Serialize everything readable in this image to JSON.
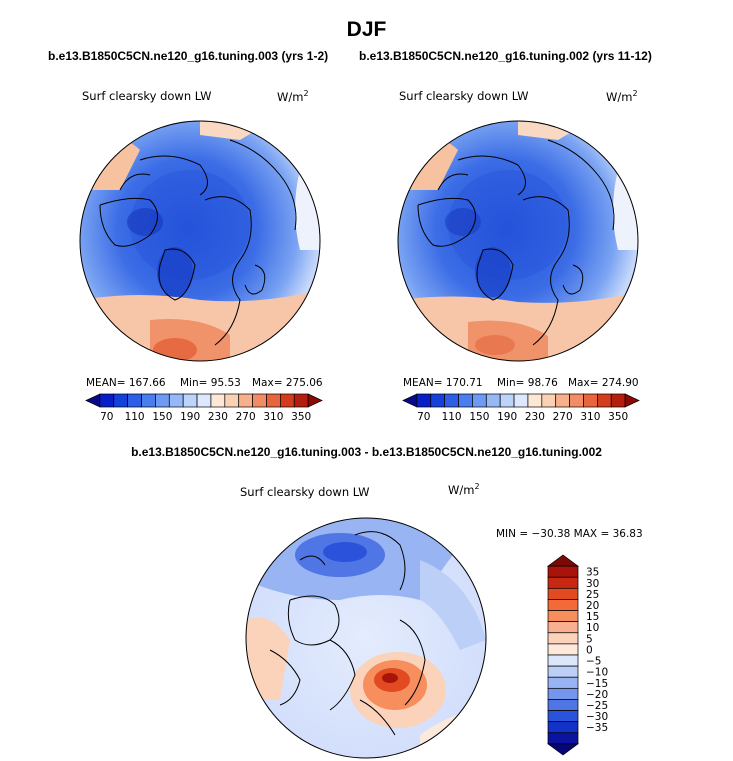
{
  "page_title": "DJF",
  "chart_data": [
    {
      "type": "heatmap",
      "title": "b.e13.B1850C5CN.ne120_g16.tuning.003 (yrs 1-2)",
      "variable": "Surf clearsky down LW",
      "units": "W/m",
      "units_sup": "2",
      "stats": {
        "mean": "167.66",
        "min": "95.53",
        "max": "275.06"
      },
      "stats_text": {
        "mean": "MEAN= 167.66",
        "min": "Min= 95.53",
        "max": "Max= 275.06"
      },
      "colorbar": {
        "orientation": "horizontal",
        "tick_labels": [
          "70",
          "110",
          "150",
          "190",
          "230",
          "270",
          "310",
          "350"
        ],
        "colors": [
          "#08088c",
          "#0a1ec8",
          "#1440dc",
          "#2d5fe6",
          "#4a7ded",
          "#6e9af3",
          "#96b8f7",
          "#bcd3fa",
          "#dde8fd",
          "#fde8d6",
          "#fbd1b4",
          "#f7b08c",
          "#f28c64",
          "#e8643c",
          "#d43c1e",
          "#b41e0f",
          "#8c0a05"
        ]
      }
    },
    {
      "type": "heatmap",
      "title": "b.e13.B1850C5CN.ne120_g16.tuning.002 (yrs 11-12)",
      "variable": "Surf clearsky down LW",
      "units": "W/m",
      "units_sup": "2",
      "stats": {
        "mean": "170.71",
        "min": "98.76",
        "max": "274.90"
      },
      "stats_text": {
        "mean": "MEAN= 170.71",
        "min": "Min= 98.76",
        "max": "Max= 274.90"
      },
      "colorbar": {
        "orientation": "horizontal",
        "tick_labels": [
          "70",
          "110",
          "150",
          "190",
          "230",
          "270",
          "310",
          "350"
        ],
        "colors": [
          "#08088c",
          "#0a1ec8",
          "#1440dc",
          "#2d5fe6",
          "#4a7ded",
          "#6e9af3",
          "#96b8f7",
          "#bcd3fa",
          "#dde8fd",
          "#fde8d6",
          "#fbd1b4",
          "#f7b08c",
          "#f28c64",
          "#e8643c",
          "#d43c1e",
          "#b41e0f",
          "#8c0a05"
        ]
      }
    },
    {
      "type": "heatmap",
      "title": "b.e13.B1850C5CN.ne120_g16.tuning.003 - b.e13.B1850C5CN.ne120_g16.tuning.002",
      "variable": "Surf clearsky down LW",
      "units": "W/m",
      "units_sup": "2",
      "stats": {
        "min": "−30.38",
        "max": "36.83"
      },
      "stats_text": {
        "minmax": "MIN = −30.38 MAX =  36.83"
      },
      "colorbar": {
        "orientation": "vertical",
        "tick_labels": [
          "35",
          "30",
          "25",
          "20",
          "15",
          "10",
          "5",
          "0",
          "−5",
          "−10",
          "−15",
          "−20",
          "−25",
          "−30",
          "−35"
        ],
        "colors": [
          "#7a0a05",
          "#a8140a",
          "#c82812",
          "#e24a22",
          "#f26a38",
          "#f68e5e",
          "#f9b090",
          "#fbd2ba",
          "#fde9dc",
          "#dde7fb",
          "#bcd0f7",
          "#98b4f2",
          "#7496ec",
          "#4f76e4",
          "#2b52da",
          "#1232c8",
          "#0a14a0",
          "#06067a"
        ]
      }
    }
  ]
}
